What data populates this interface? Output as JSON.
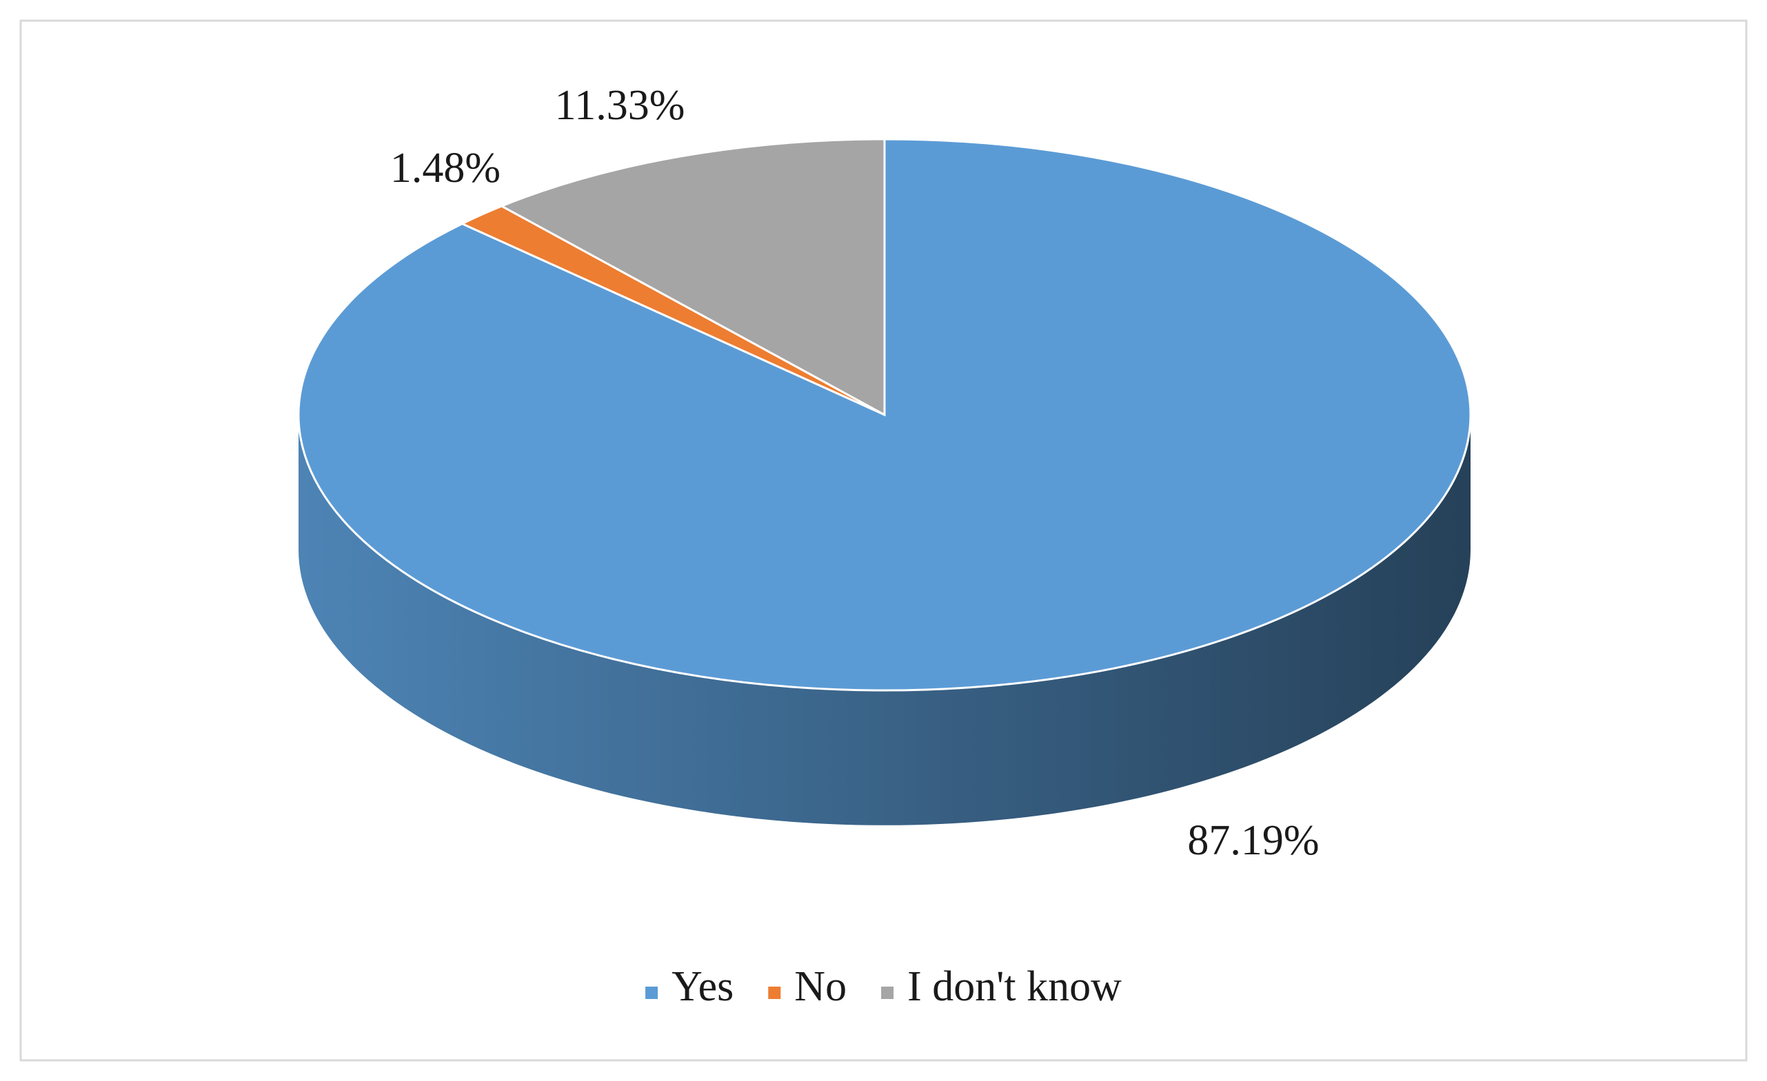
{
  "chart_data": {
    "type": "pie",
    "style": "3d",
    "categories": [
      "Yes",
      "No",
      "I don't know"
    ],
    "values": [
      87.19,
      1.48,
      11.33
    ],
    "value_labels": [
      "87.19%",
      "1.48%",
      "11.33%"
    ],
    "colors": [
      "#5b9bd5",
      "#ed7d31",
      "#a5a5a5"
    ],
    "legend": "bottom"
  }
}
